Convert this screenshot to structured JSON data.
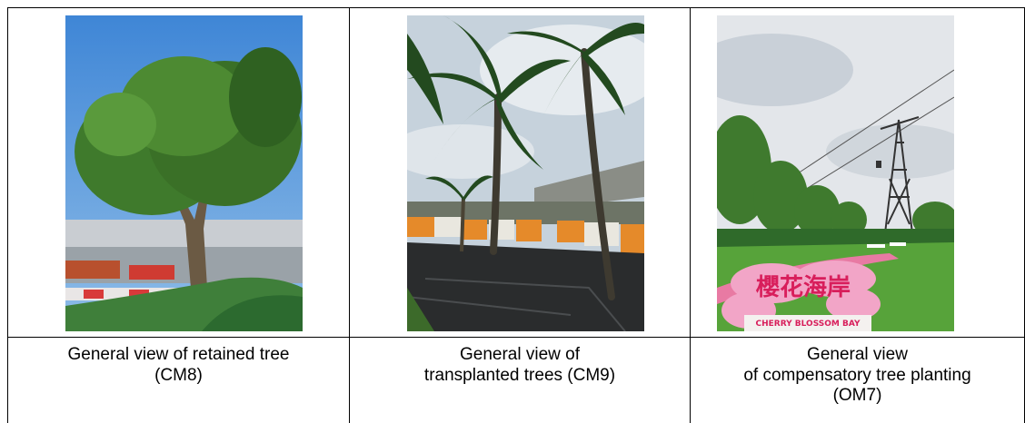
{
  "table": {
    "columns": [
      {
        "caption_lines": [
          "General view of retained tree",
          "(CM8)"
        ]
      },
      {
        "caption_lines": [
          "General view of",
          "transplanted trees (CM9)"
        ]
      },
      {
        "caption_lines": [
          "General view",
          "of compensatory tree planting",
          "(OM7)"
        ],
        "photo_sign": [
          "櫻花海岸",
          "CHERRY BLOSSOM BAY"
        ]
      }
    ]
  }
}
